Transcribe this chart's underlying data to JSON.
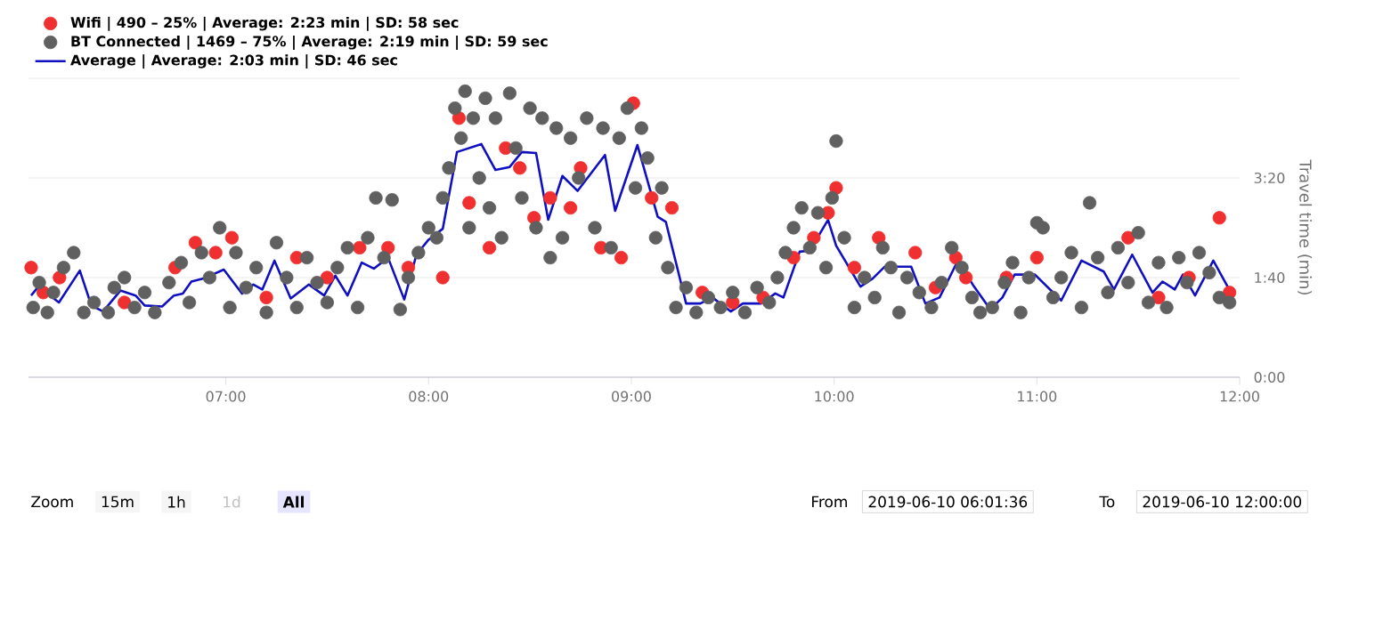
{
  "chart_data": {
    "type": "scatter",
    "ylabel": "Travel time (min)",
    "xlim": [
      6.027,
      12
    ],
    "xticks": [
      {
        "value": 7,
        "label": "07:00"
      },
      {
        "value": 8,
        "label": "08:00"
      },
      {
        "value": 9,
        "label": "09:00"
      },
      {
        "value": 10,
        "label": "10:00"
      },
      {
        "value": 11,
        "label": "11:00"
      },
      {
        "value": 12,
        "label": "12:00"
      }
    ],
    "ylim": [
      0,
      300
    ],
    "yticks": [
      {
        "value": 0,
        "label": "0:00"
      },
      {
        "value": 100,
        "label": "1:40"
      },
      {
        "value": 200,
        "label": "3:20"
      },
      {
        "value": 300,
        "label": null
      }
    ],
    "grid": "y",
    "legend": "top left",
    "series": [
      {
        "name": "Wifi | 490 – 25% | Average: 2:23 min | SD: 58 sec",
        "type": "scatter",
        "marker": "circle",
        "color": "#f03030",
        "x": [
          6.04,
          6.1,
          6.18,
          6.5,
          6.75,
          6.85,
          6.95,
          7.03,
          7.2,
          7.35,
          7.5,
          7.66,
          7.8,
          7.9,
          8.07,
          8.15,
          8.2,
          8.3,
          8.38,
          8.45,
          8.52,
          8.6,
          8.7,
          8.75,
          8.85,
          8.95,
          9.01,
          9.1,
          9.2,
          9.35,
          9.5,
          9.65,
          9.8,
          9.9,
          9.97,
          10.01,
          10.1,
          10.22,
          10.4,
          10.5,
          10.6,
          10.65,
          10.85,
          11.0,
          11.45,
          11.6,
          11.75,
          11.9,
          11.95
        ],
        "values": [
          110,
          85,
          100,
          75,
          110,
          135,
          125,
          140,
          80,
          120,
          100,
          130,
          130,
          110,
          100,
          260,
          175,
          130,
          230,
          210,
          160,
          180,
          170,
          210,
          130,
          120,
          275,
          180,
          170,
          85,
          75,
          80,
          120,
          140,
          165,
          190,
          110,
          140,
          125,
          90,
          120,
          100,
          100,
          120,
          140,
          80,
          100,
          160,
          85
        ]
      },
      {
        "name": "BT Connected | 1469 – 75% | Average: 2:19 min | SD: 59 sec",
        "type": "scatter",
        "marker": "circle",
        "color": "#606060",
        "x": [
          6.05,
          6.08,
          6.12,
          6.15,
          6.2,
          6.25,
          6.3,
          6.35,
          6.42,
          6.45,
          6.5,
          6.55,
          6.6,
          6.65,
          6.72,
          6.78,
          6.82,
          6.88,
          6.92,
          6.97,
          7.02,
          7.05,
          7.1,
          7.15,
          7.2,
          7.25,
          7.3,
          7.35,
          7.4,
          7.45,
          7.5,
          7.55,
          7.6,
          7.65,
          7.7,
          7.74,
          7.78,
          7.82,
          7.86,
          7.9,
          7.95,
          8.0,
          8.04,
          8.07,
          8.1,
          8.13,
          8.16,
          8.18,
          8.2,
          8.22,
          8.25,
          8.28,
          8.3,
          8.33,
          8.36,
          8.4,
          8.43,
          8.46,
          8.5,
          8.53,
          8.56,
          8.6,
          8.63,
          8.66,
          8.7,
          8.74,
          8.78,
          8.82,
          8.86,
          8.9,
          8.94,
          8.98,
          9.02,
          9.05,
          9.08,
          9.12,
          9.15,
          9.18,
          9.22,
          9.27,
          9.32,
          9.38,
          9.44,
          9.5,
          9.56,
          9.62,
          9.68,
          9.72,
          9.76,
          9.8,
          9.84,
          9.88,
          9.92,
          9.96,
          9.99,
          10.01,
          10.05,
          10.1,
          10.15,
          10.2,
          10.24,
          10.28,
          10.32,
          10.36,
          10.42,
          10.48,
          10.53,
          10.58,
          10.63,
          10.68,
          10.72,
          10.78,
          10.84,
          10.88,
          10.92,
          10.96,
          11.0,
          11.03,
          11.08,
          11.12,
          11.17,
          11.22,
          11.26,
          11.3,
          11.35,
          11.4,
          11.45,
          11.5,
          11.55,
          11.6,
          11.64,
          11.7,
          11.74,
          11.8,
          11.85,
          11.9,
          11.95
        ],
        "values": [
          70,
          95,
          65,
          85,
          110,
          125,
          65,
          75,
          65,
          90,
          100,
          70,
          85,
          65,
          95,
          115,
          75,
          125,
          100,
          150,
          70,
          125,
          90,
          110,
          65,
          135,
          100,
          70,
          120,
          95,
          75,
          110,
          130,
          70,
          140,
          180,
          120,
          178,
          68,
          100,
          125,
          150,
          140,
          180,
          210,
          270,
          240,
          287,
          150,
          260,
          200,
          280,
          170,
          260,
          140,
          285,
          230,
          180,
          270,
          150,
          260,
          120,
          250,
          140,
          240,
          200,
          260,
          150,
          250,
          130,
          240,
          270,
          190,
          250,
          220,
          140,
          190,
          110,
          70,
          90,
          65,
          80,
          70,
          85,
          65,
          90,
          75,
          100,
          125,
          150,
          170,
          130,
          165,
          110,
          180,
          237,
          140,
          70,
          100,
          80,
          130,
          110,
          65,
          100,
          85,
          70,
          95,
          130,
          110,
          80,
          65,
          70,
          95,
          115,
          65,
          100,
          155,
          150,
          80,
          100,
          125,
          70,
          175,
          120,
          85,
          130,
          95,
          145,
          75,
          115,
          70,
          120,
          95,
          125,
          105,
          80,
          75
        ]
      },
      {
        "name": "Average | Average: 2:03 min | SD: 46 sec",
        "type": "line",
        "marker": "none",
        "line_style": "solid",
        "color": "#1010c0",
        "x": [
          6.04,
          6.076,
          6.177,
          6.28,
          6.337,
          6.395,
          6.48,
          6.555,
          6.6,
          6.686,
          6.744,
          6.788,
          6.83,
          6.89,
          6.99,
          7.08,
          7.136,
          7.18,
          7.24,
          7.32,
          7.41,
          7.485,
          7.54,
          7.6,
          7.67,
          7.73,
          7.8,
          7.88,
          7.94,
          8.0,
          8.07,
          8.14,
          8.26,
          8.33,
          8.4,
          8.46,
          8.53,
          8.59,
          8.66,
          8.735,
          8.87,
          8.92,
          9.03,
          9.13,
          9.17,
          9.27,
          9.34,
          9.4,
          9.49,
          9.55,
          9.64,
          9.71,
          9.75,
          9.83,
          9.88,
          9.97,
          10.01,
          10.13,
          10.19,
          10.25,
          10.38,
          10.45,
          10.52,
          10.61,
          10.69,
          10.77,
          10.83,
          10.89,
          10.99,
          11.12,
          11.22,
          11.33,
          11.38,
          11.47,
          11.57,
          11.62,
          11.68,
          11.72,
          11.78,
          11.87,
          11.97
        ],
        "values": [
          82,
          91,
          75,
          107,
          72,
          66,
          87,
          82,
          72,
          71,
          82,
          84,
          96,
          99,
          108,
          84,
          93,
          88,
          117,
          79,
          93,
          82,
          102,
          82,
          115,
          109,
          120,
          78,
          123,
          138,
          149,
          226,
          234,
          208,
          211,
          226,
          225,
          158,
          202,
          187,
          223,
          167,
          233,
          161,
          156,
          74,
          74,
          80,
          66,
          74,
          74,
          84,
          80,
          126,
          127,
          158,
          132,
          91,
          99,
          111,
          111,
          74,
          80,
          117,
          91,
          68,
          80,
          103,
          103,
          77,
          117,
          106,
          88,
          123,
          85,
          96,
          88,
          103,
          82,
          117,
          80
        ]
      }
    ],
    "annotations": [
      "Zoom",
      "15m",
      "1h",
      "1d",
      "All",
      "From",
      "2019-06-10 06:01:36",
      "To",
      "2019-06-10 12:00:00"
    ]
  }
}
